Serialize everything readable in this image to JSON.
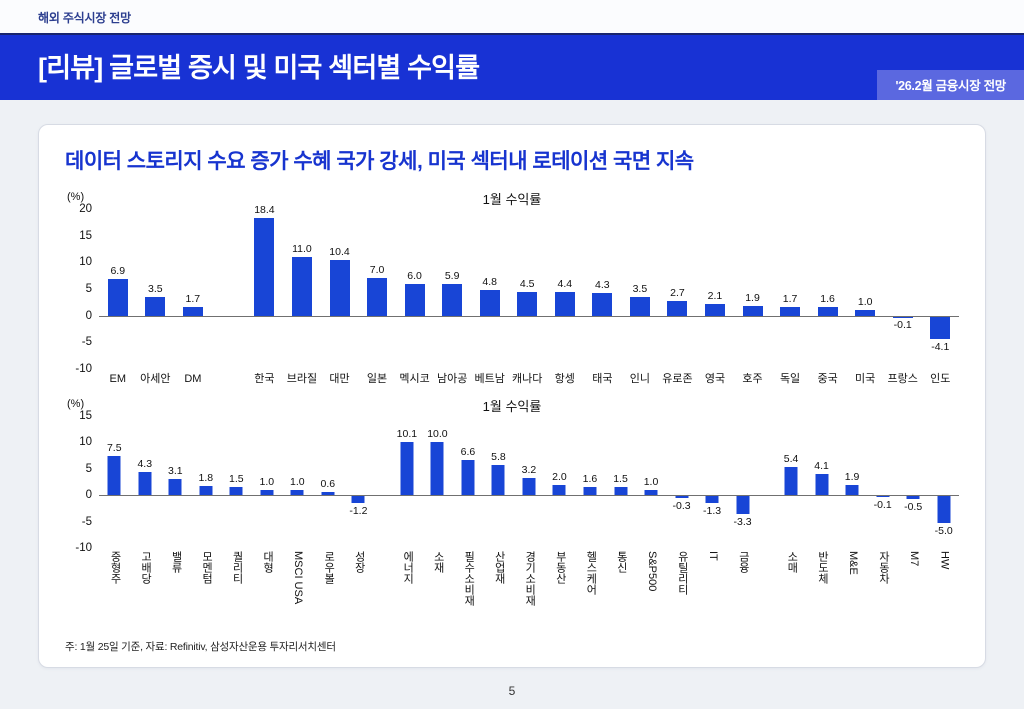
{
  "header": {
    "eyebrow": "해외 주식시장 전망",
    "title": "[리뷰] 글로벌 증시 및 미국 섹터별 수익률",
    "badge": "'26.2월 금융시장 전망"
  },
  "card": {
    "headline": "데이터 스토리지 수요 증가 수혜 국가 강세, 미국 섹터내 로테이션 국면 지속",
    "footnote": "주: 1월 25일 기준, 자료: Refinitiv, 삼성자산운용 투자리서치센터"
  },
  "page_number": "5",
  "colors": {
    "banner": "#1832d4",
    "badge": "#5b68e0",
    "bar": "#1845d6",
    "headline_text": "#1734cf"
  },
  "chart_data": [
    {
      "type": "bar",
      "title": "1월 수익률",
      "ylabel": "(%)",
      "ylim": [
        -10,
        20
      ],
      "yticks": [
        20,
        15,
        10,
        5,
        0,
        -5,
        -10
      ],
      "grid": false,
      "legend": false,
      "bar_color": "#1845d6",
      "label_orientation": "horizontal",
      "gaps_after": [
        "DM"
      ],
      "categories": [
        "EM",
        "아세안",
        "DM",
        "한국",
        "브라질",
        "대만",
        "일본",
        "멕시코",
        "남아공",
        "베트남",
        "캐나다",
        "항셍",
        "태국",
        "인니",
        "유로존",
        "영국",
        "호주",
        "독일",
        "중국",
        "미국",
        "프랑스",
        "인도"
      ],
      "values": [
        6.9,
        3.5,
        1.7,
        18.4,
        11.0,
        10.4,
        7.0,
        6.0,
        5.9,
        4.8,
        4.5,
        4.4,
        4.3,
        3.5,
        2.7,
        2.1,
        1.9,
        1.7,
        1.6,
        1.0,
        -0.1,
        -4.1
      ]
    },
    {
      "type": "bar",
      "title": "1월 수익률",
      "ylabel": "(%)",
      "ylim": [
        -10,
        15
      ],
      "yticks": [
        15,
        10,
        5,
        0,
        -5,
        -10
      ],
      "grid": false,
      "legend": false,
      "bar_color": "#1845d6",
      "label_orientation": "vertical",
      "gaps_after": [
        "성장",
        "금융"
      ],
      "categories": [
        "중형주",
        "고배당",
        "밸류",
        "모멘텀",
        "퀄리티",
        "대형",
        "MSCI USA",
        "로우볼",
        "성장",
        "에너지",
        "소재",
        "필수소비재",
        "산업재",
        "경기소비재",
        "부동산",
        "헬스케어",
        "통신",
        "S&P500",
        "유틸리티",
        "IT",
        "금융",
        "소매",
        "반도체",
        "M&E",
        "자동차",
        "M7",
        "HW"
      ],
      "values": [
        7.5,
        4.3,
        3.1,
        1.8,
        1.5,
        1.0,
        1.0,
        0.6,
        -1.2,
        10.1,
        10.0,
        6.6,
        5.8,
        3.2,
        2.0,
        1.6,
        1.5,
        1.0,
        -0.3,
        -1.3,
        -3.3,
        5.4,
        4.1,
        1.9,
        -0.1,
        -0.5,
        -5.0
      ]
    }
  ]
}
